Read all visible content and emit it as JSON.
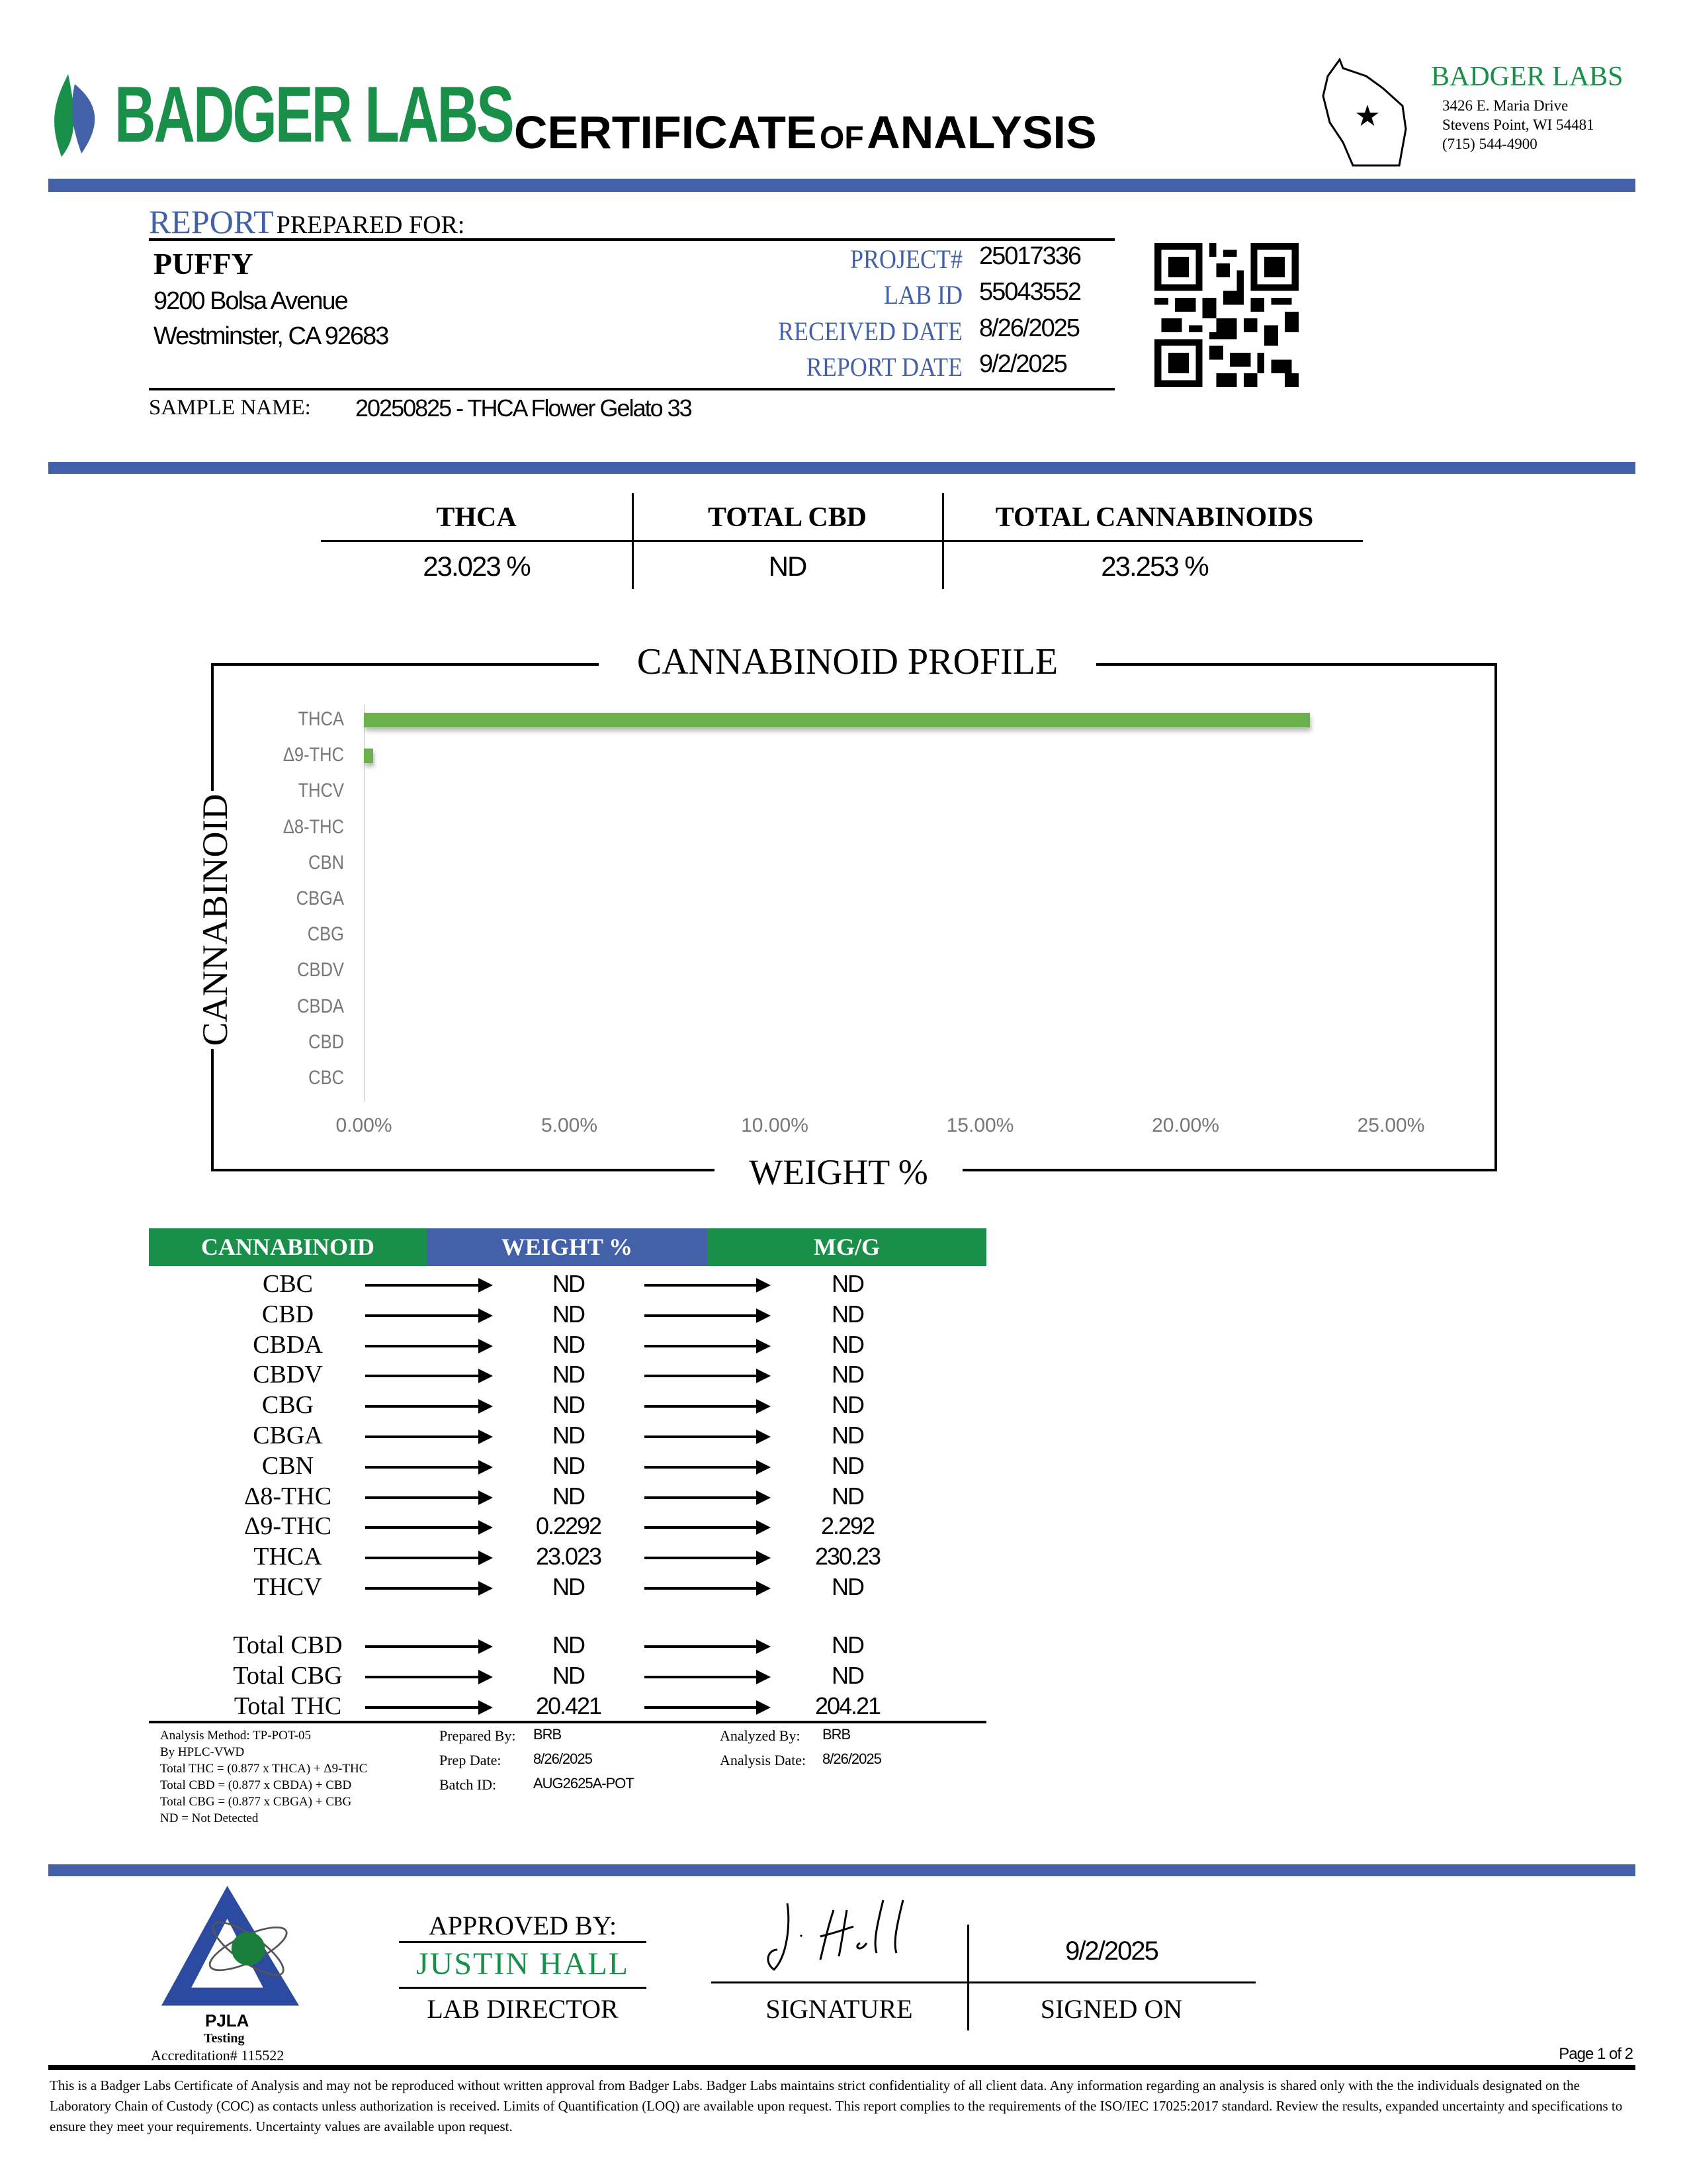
{
  "header": {
    "logo_text": "BADGER LABS",
    "title_main1": "CERTIFICATE",
    "title_of": "OF",
    "title_main2": "ANALYSIS",
    "lab_name": "BADGER LABS",
    "lab_address1": "3426 E. Maria Drive",
    "lab_address2": "Stevens Point, WI 54481",
    "lab_phone": "(715) 544-4900"
  },
  "client": {
    "report_word": "REPORT",
    "prepared_for": "PREPARED FOR:",
    "name": "PUFFY",
    "address1": "9200 Bolsa Avenue",
    "address2": "Westminster, CA 92683",
    "sample_name_label": "SAMPLE NAME:",
    "sample_name": "20250825 - THCA Flower Gelato 33"
  },
  "ids": [
    {
      "label": "PROJECT#",
      "value": "25017336"
    },
    {
      "label": "LAB ID",
      "value": "55043552"
    },
    {
      "label": "RECEIVED DATE",
      "value": "8/26/2025"
    },
    {
      "label": "REPORT DATE",
      "value": "9/2/2025"
    }
  ],
  "summary": [
    {
      "label": "THCA",
      "value": "23.023 %"
    },
    {
      "label": "TOTAL CBD",
      "value": "ND"
    },
    {
      "label": "TOTAL CANNABINOIDS",
      "value": "23.253 %"
    }
  ],
  "chart_data": {
    "type": "bar",
    "orientation": "horizontal",
    "title": "CANNABINOID PROFILE",
    "xlabel": "WEIGHT %",
    "ylabel": "CANNABINOID",
    "categories": [
      "THCA",
      "Δ9-THC",
      "THCV",
      "Δ8-THC",
      "CBN",
      "CBGA",
      "CBG",
      "CBDV",
      "CBDA",
      "CBD",
      "CBC"
    ],
    "values": [
      23.023,
      0.2292,
      0,
      0,
      0,
      0,
      0,
      0,
      0,
      0,
      0
    ],
    "xlim": [
      0,
      25
    ],
    "x_ticks": [
      "0.00%",
      "5.00%",
      "10.00%",
      "15.00%",
      "20.00%",
      "25.00%"
    ],
    "grid": false,
    "bar_color": "#6ab04c"
  },
  "results": {
    "headers": [
      "CANNABINOID",
      "WEIGHT %",
      "MG/G"
    ],
    "header_colors": [
      "#1a8f4a",
      "#4361a8",
      "#1a8f4a"
    ],
    "rows": [
      {
        "name": "CBC",
        "weight": "ND",
        "mgg": "ND"
      },
      {
        "name": "CBD",
        "weight": "ND",
        "mgg": "ND"
      },
      {
        "name": "CBDA",
        "weight": "ND",
        "mgg": "ND"
      },
      {
        "name": "CBDV",
        "weight": "ND",
        "mgg": "ND"
      },
      {
        "name": "CBG",
        "weight": "ND",
        "mgg": "ND"
      },
      {
        "name": "CBGA",
        "weight": "ND",
        "mgg": "ND"
      },
      {
        "name": "CBN",
        "weight": "ND",
        "mgg": "ND"
      },
      {
        "name": "Δ8-THC",
        "weight": "ND",
        "mgg": "ND"
      },
      {
        "name": "Δ9-THC",
        "weight": "0.2292",
        "mgg": "2.292"
      },
      {
        "name": "THCA",
        "weight": "23.023",
        "mgg": "230.23"
      },
      {
        "name": "THCV",
        "weight": "ND",
        "mgg": "ND"
      }
    ],
    "totals": [
      {
        "name": "Total CBD",
        "weight": "ND",
        "mgg": "ND"
      },
      {
        "name": "Total CBG",
        "weight": "ND",
        "mgg": "ND"
      },
      {
        "name": "Total THC",
        "weight": "20.421",
        "mgg": "204.21"
      }
    ]
  },
  "notes": [
    "Analysis Method: TP-POT-05",
    "By HPLC-VWD",
    "Total THC = (0.877 x  THCA) + Δ9-THC",
    "Total CBD = (0.877 x  CBDA) + CBD",
    "Total CBG = (0.877 x  CBGA) + CBG",
    "ND = Not Detected"
  ],
  "prep": {
    "prepared_by_label": "Prepared By:",
    "prepared_by": "BRB",
    "prep_date_label": "Prep Date:",
    "prep_date": "8/26/2025",
    "batch_label": "Batch ID:",
    "batch": "AUG2625A-POT",
    "analyzed_by_label": "Analyzed By:",
    "analyzed_by": "BRB",
    "analysis_date_label": "Analysis Date:",
    "analysis_date": "8/26/2025"
  },
  "approval": {
    "approved_by": "APPROVED BY:",
    "name": "JUSTIN HALL",
    "role": "LAB DIRECTOR",
    "signature_label": "SIGNATURE",
    "signed_on_label": "SIGNED ON",
    "signed_on": "9/2/2025"
  },
  "accreditation": {
    "org": "PJLA",
    "testing": "Testing",
    "number": "Accreditation# 115522"
  },
  "footer": {
    "page": "Page 1 of 2",
    "disclaimer": "This is a Badger Labs Certificate of Analysis and may not be reproduced without written approval from Badger Labs. Badger Labs maintains strict confidentiality of all client data. Any information regarding an analysis is shared only with the the individuals designated on the Laboratory Chain of Custody (COC) as contacts unless authorization is received. Limits of Quantification (LOQ) are available upon request. This report complies to the requirements of the ISO/IEC 17025:2017 standard. Review the results, expanded uncertainty and specifications to ensure they meet your requirements. Uncertainty values are available upon request."
  }
}
